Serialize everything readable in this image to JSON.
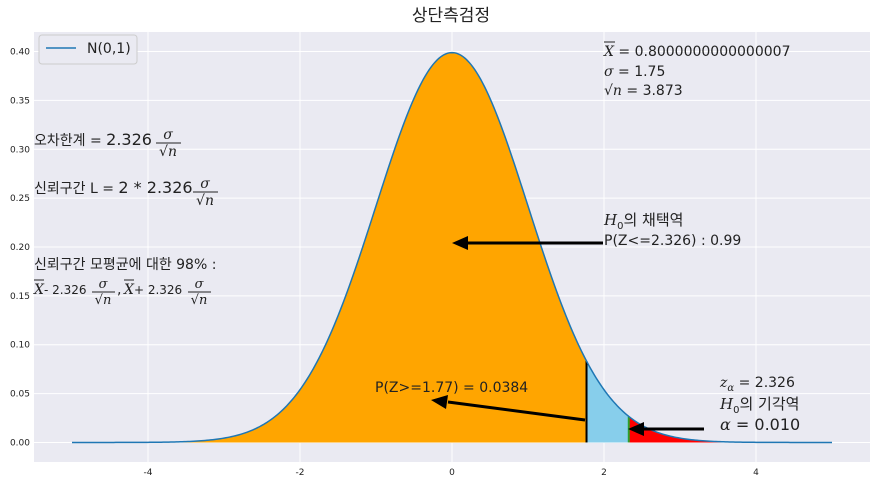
{
  "chart_data": {
    "type": "area",
    "title": "상단측검정",
    "xlabel": "",
    "ylabel": "",
    "xlim": [
      -5.5,
      5.5
    ],
    "ylim": [
      -0.02,
      0.42
    ],
    "xticks": [
      -4,
      -2,
      0,
      2,
      4
    ],
    "xtick_labels": [
      "-4",
      "-2",
      "0",
      "2",
      "4"
    ],
    "yticks": [
      0.0,
      0.05,
      0.1,
      0.15,
      0.2,
      0.25,
      0.3,
      0.35,
      0.4
    ],
    "ytick_labels": [
      "0.00",
      "0.05",
      "0.10",
      "0.15",
      "0.20",
      "0.25",
      "0.30",
      "0.35",
      "0.40"
    ],
    "grid": true,
    "legend": {
      "placement": "top-left",
      "entries": [
        "N(0,1)"
      ]
    },
    "series": [
      {
        "name": "N(0,1)",
        "function": "standard normal pdf",
        "x_range": [
          -5,
          5
        ],
        "color": "#1f77b4"
      }
    ],
    "regions": [
      {
        "name": "acceptance",
        "from": -5,
        "to": 1.77,
        "color": "#ffa500"
      },
      {
        "name": "p-value tail",
        "from": 1.77,
        "to": 2.326,
        "color": "#87ceeb"
      },
      {
        "name": "rejection",
        "from": 2.326,
        "to": 5,
        "color": "#ff0000"
      }
    ],
    "vlines": [
      {
        "x": 1.77,
        "color": "#000000"
      },
      {
        "x": 2.326,
        "color": "#2ca02c"
      }
    ],
    "annotations": {
      "stats": {
        "xbar_label": "X",
        "xbar_value": " = 0.8000000000000007",
        "sigma_label": "σ",
        "sigma_value": " = 1.75",
        "sqrtn_label": "√n",
        "sqrtn_value": " = 3.873"
      },
      "margin_of_error": {
        "label": "오차한계 = ",
        "coef": "2.326",
        "num": "σ",
        "den": "√n"
      },
      "ci_length": {
        "label": "신뢰구간 L = ",
        "expr": "2 * 2.326",
        "num": "σ",
        "den": "√n"
      },
      "ci": {
        "line1": "신뢰구간 모평균에 대한 98% :",
        "xbar": "X",
        "minus": "- 2.326",
        "comma": ",",
        "plus": "+ 2.326",
        "num": "σ",
        "den": "√n"
      },
      "acceptance": {
        "h0": "H",
        "h0_sub": "0",
        "h0_text": "의 채택역",
        "prob": "P(Z<=2.326) : 0.99"
      },
      "pvalue": {
        "text": "P(Z>=1.77)   = 0.0384"
      },
      "critical": {
        "z": "z",
        "z_sub": "α",
        "z_value": " = 2.326",
        "h0": "H",
        "h0_sub": "0",
        "h0_text": "의 기각역",
        "alpha": "α",
        "alpha_value": " = 0.010"
      }
    }
  }
}
